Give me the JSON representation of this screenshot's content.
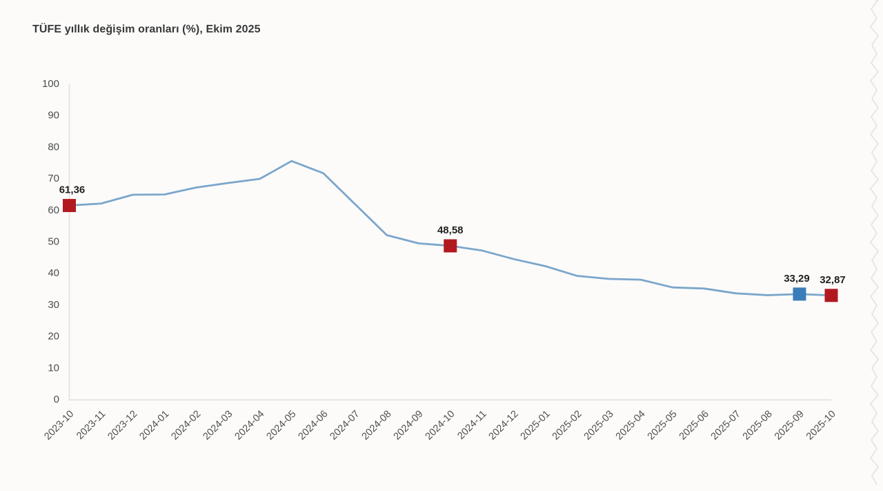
{
  "header": {
    "title": "TÜFE yıllık değişim oranları (%), Ekim 2025"
  },
  "chart_data": {
    "type": "line",
    "title": "TÜFE yıllık değişim oranları (%), Ekim 2025",
    "categories": [
      "2023-10",
      "2023-11",
      "2023-12",
      "2024-01",
      "2024-02",
      "2024-03",
      "2024-04",
      "2024-05",
      "2024-06",
      "2024-07",
      "2024-08",
      "2024-09",
      "2024-10",
      "2024-11",
      "2024-12",
      "2025-01",
      "2025-02",
      "2025-03",
      "2025-04",
      "2025-05",
      "2025-06",
      "2025-07",
      "2025-08",
      "2025-09",
      "2025-10"
    ],
    "series": [
      {
        "name": "TÜFE yıllık değişim oranı (%)",
        "values": [
          61.36,
          61.98,
          64.77,
          64.86,
          67.07,
          68.5,
          69.8,
          75.45,
          71.6,
          61.78,
          51.97,
          49.38,
          48.58,
          47.09,
          44.38,
          42.12,
          39.05,
          38.1,
          37.86,
          35.41,
          35.05,
          33.52,
          32.95,
          33.29,
          32.87
        ]
      }
    ],
    "ylim": [
      0,
      100
    ],
    "ytick_step": 10,
    "yticks": [
      0,
      10,
      20,
      30,
      40,
      50,
      60,
      70,
      80,
      90,
      100
    ],
    "grid": false,
    "legend_position": "none",
    "xlabel": "",
    "ylabel": "",
    "annotated_points": [
      {
        "category": "2023-10",
        "index": 0,
        "value": 61.36,
        "label": "61,36",
        "marker_color": "#b2191f"
      },
      {
        "category": "2024-10",
        "index": 12,
        "value": 48.58,
        "label": "48,58",
        "marker_color": "#b2191f"
      },
      {
        "category": "2025-09",
        "index": 23,
        "value": 33.29,
        "label": "33,29",
        "marker_color": "#3a7db8"
      },
      {
        "category": "2025-10",
        "index": 24,
        "value": 32.87,
        "label": "32,87",
        "marker_color": "#b2191f"
      }
    ],
    "colors": {
      "line": "#7ba6cb",
      "marker_red": "#b2191f",
      "marker_blue": "#3a7db8",
      "axis_line": "#e7e4e1",
      "tick_text": "#4d4d4d",
      "data_label_text": "#1f1f1f",
      "background": "#fcfbfa",
      "torn_edge": "#e9e6e2"
    }
  }
}
